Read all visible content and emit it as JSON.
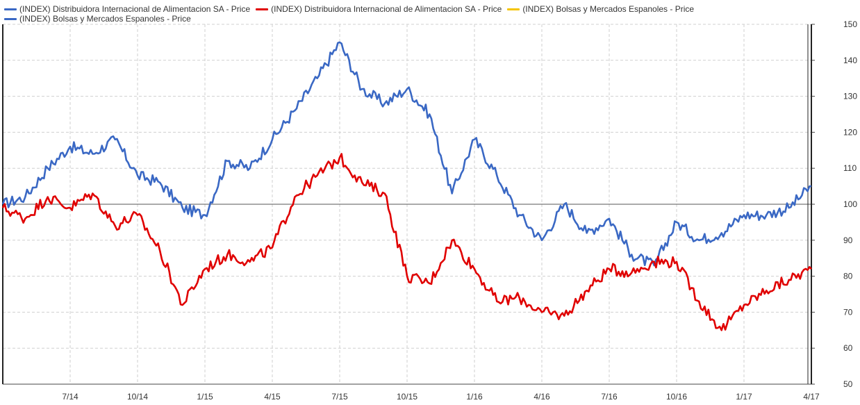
{
  "legend": [
    {
      "label": "(INDEX) Distribuidora Internacional de Alimentacion SA - Price",
      "color": "#3a68c4"
    },
    {
      "label": "(INDEX) Distribuidora Internacional de Alimentacion SA - Price",
      "color": "#e00000"
    },
    {
      "label": "(INDEX) Bolsas y Mercados Espanoles - Price",
      "color": "#f5c400"
    },
    {
      "label": "(INDEX) Bolsas y Mercados Espanoles - Price",
      "color": "#3a68c4"
    }
  ],
  "chart_data": {
    "type": "line",
    "title": "",
    "xlabel": "",
    "ylabel": "",
    "ylim": [
      50,
      150
    ],
    "yticks": [
      50,
      60,
      70,
      80,
      90,
      100,
      110,
      120,
      130,
      140,
      150
    ],
    "x_categories": [
      "4/14",
      "5/14",
      "6/14",
      "7/14",
      "8/14",
      "9/14",
      "10/14",
      "11/14",
      "12/14",
      "1/15",
      "2/15",
      "3/15",
      "4/15",
      "5/15",
      "6/15",
      "7/15",
      "8/15",
      "9/15",
      "10/15",
      "11/15",
      "12/15",
      "1/16",
      "2/16",
      "3/16",
      "4/16",
      "5/16",
      "6/16",
      "7/16",
      "8/16",
      "9/16",
      "10/16",
      "11/16",
      "12/16",
      "1/17",
      "2/17",
      "3/17",
      "4/17"
    ],
    "x_tick_labels": [
      "7/14",
      "10/14",
      "1/15",
      "4/15",
      "7/15",
      "10/15",
      "1/16",
      "4/16",
      "7/16",
      "10/16",
      "1/17",
      "4/17"
    ],
    "reference_line": 100,
    "grid": true,
    "y_axis_side": "right",
    "legend_position": "top-left",
    "series": [
      {
        "name": "(INDEX) Bolsas y Mercados Espanoles - Price",
        "color": "#3a68c4",
        "values": [
          100,
          102,
          110,
          116,
          114,
          118,
          108,
          106,
          99,
          97,
          112,
          110,
          118,
          126,
          135,
          145,
          132,
          128,
          132,
          125,
          103,
          118,
          108,
          97,
          90,
          100,
          92,
          96,
          86,
          83,
          95,
          90,
          92,
          97,
          97,
          99,
          105
        ]
      },
      {
        "name": "(INDEX) Distribuidora Internacional de Alimentacion SA - Price",
        "color": "#e00000",
        "values": [
          99,
          96,
          102,
          99,
          103,
          94,
          97,
          87,
          72,
          82,
          86,
          84,
          88,
          102,
          108,
          113,
          106,
          103,
          80,
          78,
          90,
          82,
          73,
          74,
          70,
          69,
          76,
          82,
          81,
          84,
          84,
          73,
          65,
          72,
          76,
          79,
          82
        ]
      },
      {
        "name": "(INDEX) Bolsas y Mercados Espanoles - Price",
        "color": "#f5c400",
        "values": []
      }
    ]
  }
}
